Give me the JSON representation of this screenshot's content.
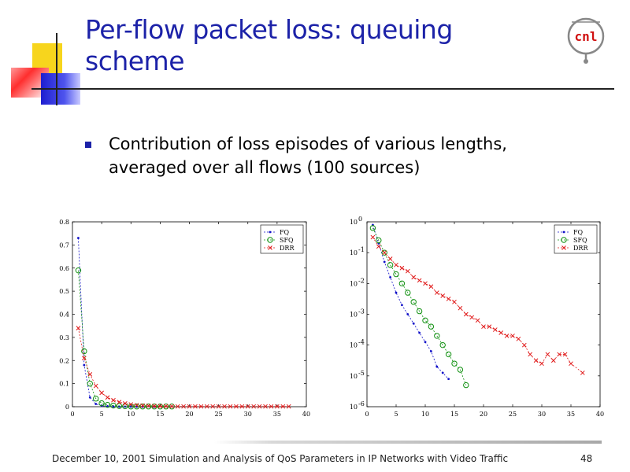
{
  "slide": {
    "title": "Per-flow packet loss: queuing scheme",
    "bullet": "Contribution of loss episodes of various lengths, averaged over all flows (100 sources)",
    "logo_text": "cnl",
    "footer": "December 10, 2001 Simulation and Analysis of QoS Parameters in IP Networks with Video Traffic",
    "page_number": "48"
  },
  "colors": {
    "title": "#1c22a8",
    "FQ": "#1010c8",
    "SFQ": "#109010",
    "DRR": "#e01818",
    "logo": "#d01010"
  },
  "chart_data": [
    {
      "type": "line",
      "title": "",
      "xlabel": "",
      "ylabel": "",
      "xlim": [
        0,
        40
      ],
      "ylim": [
        0,
        0.8
      ],
      "x_ticks": [
        0,
        5,
        10,
        15,
        20,
        25,
        30,
        35,
        40
      ],
      "y_ticks": [
        0,
        0.1,
        0.2,
        0.3,
        0.4,
        0.5,
        0.6,
        0.7,
        0.8
      ],
      "y_tick_labels": [
        "0",
        "0.1",
        "0.2",
        "0.3",
        "0.4",
        "0.5",
        "0.6",
        "0.7",
        "0.8"
      ],
      "legend_position": "top-right",
      "series": [
        {
          "name": "FQ",
          "marker": "dot",
          "x": [
            1,
            2,
            3,
            4,
            5,
            6,
            7,
            8,
            9,
            10,
            11,
            12,
            14
          ],
          "values": [
            0.73,
            0.18,
            0.04,
            0.012,
            0.004,
            0.002,
            0.001,
            0.0006,
            0.0004,
            0.0002,
            0.0001,
            0.0001,
            0.0001
          ]
        },
        {
          "name": "SFQ",
          "marker": "circle",
          "x": [
            1,
            2,
            3,
            4,
            5,
            6,
            7,
            8,
            9,
            10,
            11,
            12,
            13,
            14,
            15,
            16,
            17
          ],
          "values": [
            0.59,
            0.24,
            0.1,
            0.035,
            0.015,
            0.008,
            0.005,
            0.003,
            0.002,
            0.001,
            0.001,
            0.001,
            0.001,
            0.001,
            0.001,
            0.001,
            0.001
          ]
        },
        {
          "name": "DRR",
          "marker": "x",
          "x": [
            1,
            2,
            3,
            4,
            5,
            6,
            7,
            8,
            9,
            10,
            11,
            12,
            13,
            14,
            15,
            16,
            17,
            18,
            19,
            20,
            21,
            22,
            23,
            24,
            25,
            26,
            27,
            28,
            29,
            30,
            31,
            32,
            33,
            34,
            35,
            36,
            37
          ],
          "values": [
            0.34,
            0.21,
            0.14,
            0.09,
            0.06,
            0.04,
            0.028,
            0.02,
            0.014,
            0.01,
            0.007,
            0.005,
            0.004,
            0.003,
            0.002,
            0.002,
            0.0015,
            0.001,
            0.001,
            0.001,
            0.001,
            0.001,
            0.001,
            0.001,
            0.001,
            0.001,
            0.001,
            0.001,
            0.001,
            0.001,
            0.001,
            0.001,
            0.001,
            0.001,
            0.001,
            0.001,
            0.001
          ]
        }
      ]
    },
    {
      "type": "line",
      "scale": "log",
      "title": "",
      "xlabel": "",
      "ylabel": "",
      "xlim": [
        0,
        40
      ],
      "ylim_exp": [
        -6,
        0
      ],
      "x_ticks": [
        0,
        5,
        10,
        15,
        20,
        25,
        30,
        35,
        40
      ],
      "y_tick_exps": [
        0,
        -1,
        -2,
        -3,
        -4,
        -5,
        -6
      ],
      "y_tick_base": "10",
      "legend_position": "top-right",
      "series": [
        {
          "name": "FQ",
          "marker": "dot",
          "x": [
            1,
            2,
            3,
            4,
            5,
            6,
            7,
            8,
            9,
            10,
            11,
            12,
            13,
            14
          ],
          "log10_values": [
            -0.1,
            -0.7,
            -1.3,
            -1.8,
            -2.3,
            -2.7,
            -3.0,
            -3.3,
            -3.6,
            -3.9,
            -4.2,
            -4.7,
            -4.9,
            -5.1
          ]
        },
        {
          "name": "SFQ",
          "marker": "circle",
          "x": [
            1,
            2,
            3,
            4,
            5,
            6,
            7,
            8,
            9,
            10,
            11,
            12,
            13,
            14,
            15,
            16,
            17
          ],
          "log10_values": [
            -0.2,
            -0.6,
            -1.0,
            -1.4,
            -1.7,
            -2.0,
            -2.3,
            -2.6,
            -2.9,
            -3.2,
            -3.4,
            -3.7,
            -4.0,
            -4.3,
            -4.6,
            -4.8,
            -5.3
          ]
        },
        {
          "name": "DRR",
          "marker": "x",
          "x": [
            1,
            2,
            3,
            4,
            5,
            6,
            7,
            8,
            9,
            10,
            11,
            12,
            13,
            14,
            15,
            16,
            17,
            18,
            19,
            20,
            21,
            22,
            23,
            24,
            25,
            26,
            27,
            28,
            29,
            30,
            31,
            32,
            33,
            34,
            35,
            37
          ],
          "log10_values": [
            -0.5,
            -0.8,
            -1.0,
            -1.2,
            -1.4,
            -1.5,
            -1.6,
            -1.8,
            -1.9,
            -2.0,
            -2.1,
            -2.3,
            -2.4,
            -2.5,
            -2.6,
            -2.8,
            -3.0,
            -3.1,
            -3.2,
            -3.4,
            -3.4,
            -3.5,
            -3.6,
            -3.7,
            -3.7,
            -3.8,
            -4.0,
            -4.3,
            -4.5,
            -4.6,
            -4.3,
            -4.5,
            -4.3,
            -4.3,
            -4.6,
            -4.9
          ]
        }
      ]
    }
  ]
}
